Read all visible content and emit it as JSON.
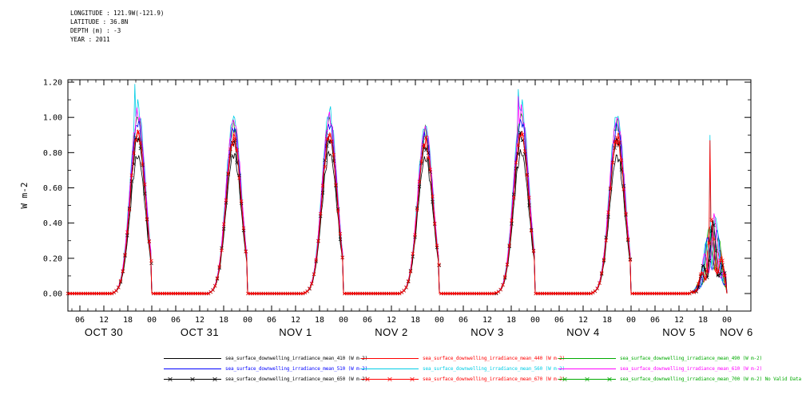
{
  "header": {
    "lines": [
      "LONGITUDE : 121.9W(-121.9)",
      "LATITUDE : 36.8N",
      "DEPTH (m) : -3",
      "YEAR : 2011"
    ]
  },
  "chart_data": {
    "type": "line",
    "title": "",
    "ylabel": "W m-2",
    "ylim": [
      -0.1,
      1.21
    ],
    "ytick_values": [
      0.0,
      0.2,
      0.4,
      0.6,
      0.8,
      1.0,
      1.2
    ],
    "ytick_labels": [
      "0.00",
      "0.20",
      "0.40",
      "0.60",
      "0.80",
      "1.00",
      "1.20"
    ],
    "hour_tick_labels": [
      "06",
      "12",
      "18",
      "00"
    ],
    "day_labels": [
      "OCT 30",
      "OCT 31",
      "NOV 1",
      "NOV 2",
      "NOV 3",
      "NOV 4",
      "NOV 5",
      "NOV 6"
    ],
    "x_hours_range": [
      3,
      168
    ],
    "solar_noon_hour": 20.5,
    "sigma_hours": 1.9,
    "cloudy_day_index": 6,
    "grid": false,
    "legend_position": "bottom",
    "series": [
      {
        "wavelength": 410,
        "label": "sea_surface_downwelling_irradiance_mean_410 (W m-2)",
        "color": "#000000",
        "marker": null,
        "line_width": 0.8,
        "daily_peaks": [
          0.78,
          0.79,
          0.8,
          0.77,
          0.8,
          0.78,
          0.4
        ]
      },
      {
        "wavelength": 440,
        "label": "sea_surface_downwelling_irradiance_mean_440 (W m-2)",
        "color": "#ff0000",
        "marker": null,
        "line_width": 0.8,
        "daily_peaks": [
          0.92,
          0.9,
          0.91,
          0.87,
          0.92,
          0.9,
          0.44
        ]
      },
      {
        "wavelength": 490,
        "label": "sea_surface_downwelling_irradiance_mean_490 (W m-2)",
        "color": "#00aa00",
        "marker": null,
        "line_width": 0.8,
        "daily_peaks": [
          1.0,
          0.96,
          0.99,
          0.92,
          1.01,
          0.97,
          0.47
        ]
      },
      {
        "wavelength": 510,
        "label": "sea_surface_downwelling_irradiance_mean_510 (W m-2)",
        "color": "#0000ff",
        "marker": null,
        "line_width": 0.8,
        "daily_peaks": [
          0.97,
          0.94,
          0.96,
          0.9,
          0.98,
          0.95,
          0.46
        ]
      },
      {
        "wavelength": 560,
        "label": "sea_surface_downwelling_irradiance_mean_560 (W m-2)",
        "color": "#00cde6",
        "marker": null,
        "line_width": 0.8,
        "daily_peaks": [
          1.06,
          1.0,
          1.03,
          0.95,
          1.07,
          1.01,
          0.5
        ],
        "spikes": [
          {
            "day": 0,
            "value": 1.19
          },
          {
            "day": 4,
            "value": 1.16
          },
          {
            "day": 6,
            "value": 0.9
          }
        ]
      },
      {
        "wavelength": 610,
        "label": "sea_surface_downwelling_irradiance_mean_610 (W m-2)",
        "color": "#ff00ff",
        "marker": null,
        "line_width": 0.8,
        "daily_peaks": [
          1.02,
          0.98,
          1.0,
          0.94,
          1.03,
          0.99,
          0.48
        ],
        "spikes": [
          {
            "day": 4,
            "value": 1.12
          }
        ]
      },
      {
        "wavelength": 650,
        "label": "sea_surface_downwelling_irradiance_mean_650 (W m-2)",
        "color": "#000000",
        "marker": "x",
        "line_width": 0.9,
        "daily_peaks": [
          0.88,
          0.86,
          0.88,
          0.84,
          0.89,
          0.87,
          0.43
        ]
      },
      {
        "wavelength": 670,
        "label": "sea_surface_downwelling_irradiance_mean_670 (W m-2)",
        "color": "#ff0000",
        "marker": "x",
        "line_width": 0.9,
        "daily_peaks": [
          0.91,
          0.88,
          0.9,
          0.86,
          0.91,
          0.88,
          0.44
        ],
        "spikes": [
          {
            "day": 6,
            "value": 0.87
          }
        ]
      },
      {
        "wavelength": 700,
        "label": "sea_surface_downwelling_irradiance_mean_700 (W m-2) No Valid Data",
        "color": "#00aa00",
        "marker": "x",
        "line_width": 0.9,
        "no_data": true,
        "daily_peaks": []
      }
    ]
  }
}
